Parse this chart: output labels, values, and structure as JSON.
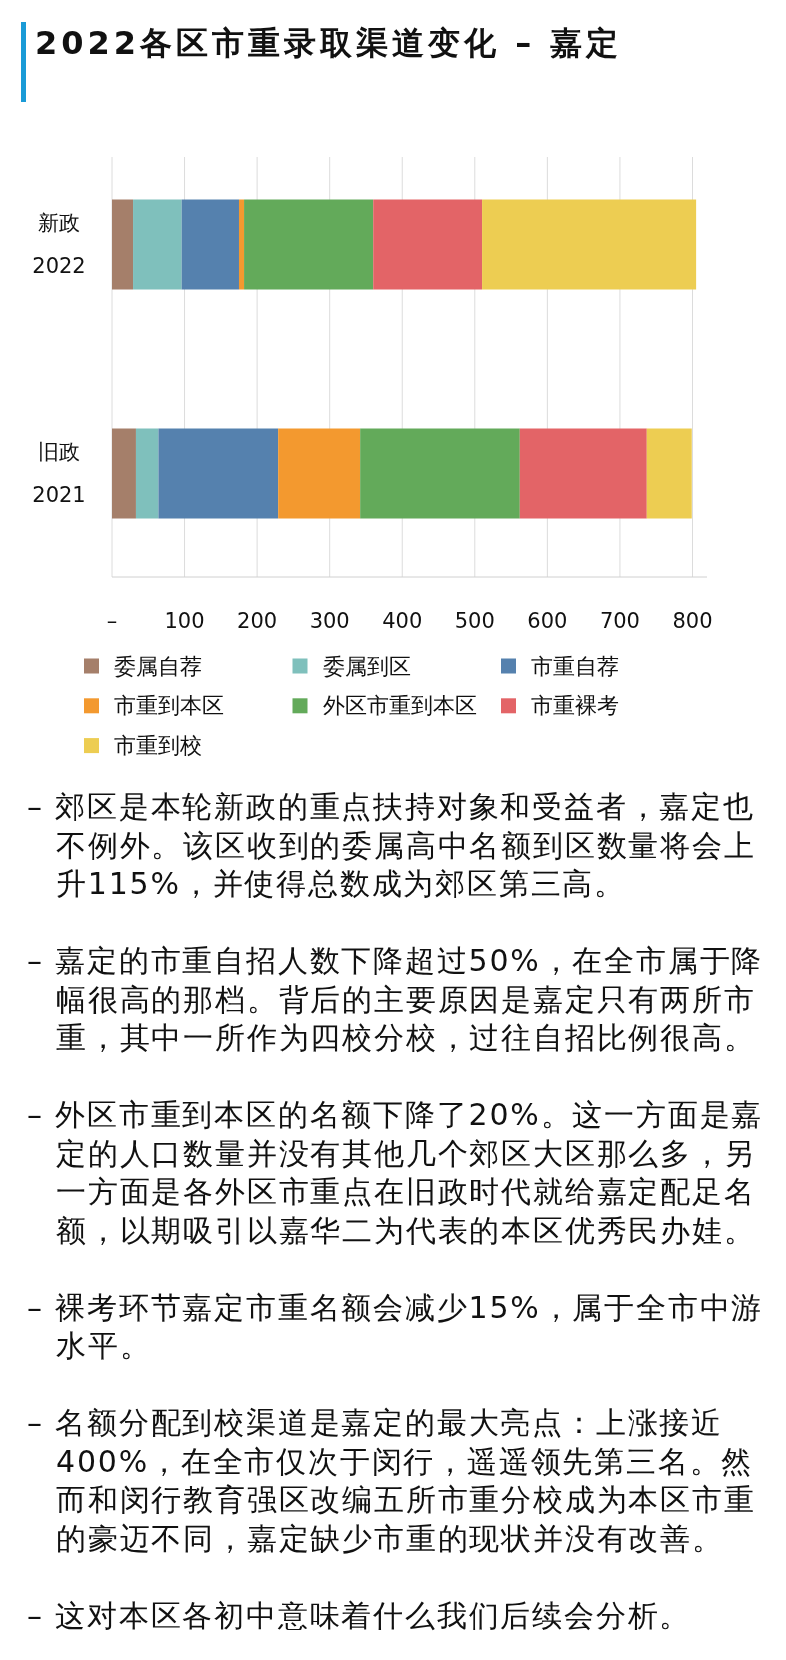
{
  "chart_data": {
    "type": "bar",
    "orientation": "horizontal",
    "stacked": true,
    "title": "2022各区市重录取渠道变化 – 嘉定",
    "categories": [
      "新政\n2022",
      "旧政\n2021"
    ],
    "series": [
      {
        "name": "委属自荐",
        "color": "#a57f6a",
        "values": [
          29,
          33
        ]
      },
      {
        "name": "委属到区",
        "color": "#7fc0bc",
        "values": [
          67,
          31
        ]
      },
      {
        "name": "市重自荐",
        "color": "#5581ae",
        "values": [
          79,
          165
        ]
      },
      {
        "name": "市重到本区",
        "color": "#f3992f",
        "values": [
          7,
          113
        ]
      },
      {
        "name": "外区市重到本区",
        "color": "#63aa5a",
        "values": [
          178,
          220
        ]
      },
      {
        "name": "市重裸考",
        "color": "#e36467",
        "values": [
          150,
          175
        ]
      },
      {
        "name": "市重到校",
        "color": "#edcd52",
        "values": [
          295,
          62
        ]
      }
    ],
    "xlim": [
      0,
      820
    ],
    "xticks": [
      {
        "value": 0,
        "label": "–"
      },
      100,
      200,
      300,
      400,
      500,
      600,
      700,
      800
    ],
    "grid": "x",
    "legend": "bottom",
    "annotations": [
      "– 郊区是本轮新政的重点扶持对象和受益者，嘉定也不例外。该区收到的委属高中名额到区数量将会上升115%，并使得总数成为郊区第三高。",
      "– 嘉定的市重自招人数下降超过50%，在全市属于降幅很高的那档。背后的主要原因是嘉定只有两所市重，其中一所作为四校分校，过往自招比例很高。",
      "– 外区市重到本区的名额下降了20%。这一方面是嘉定的人口数量并没有其他几个郊区大区那么多，另一方面是各外区市重点在旧政时代就给嘉定配足名额，以期吸引以嘉华二为代表的本区优秀民办娃。",
      "– 裸考环节嘉定市重名额会减少15%，属于全市中游水平。",
      "– 名额分配到校渠道是嘉定的最大亮点：上涨接近400%，在全市仅次于闵行，遥遥领先第三名。然而和闵行教育强区改编五所市重分校成为本区市重的豪迈不同，嘉定缺少市重的现状并没有改善。",
      "– 这对本区各初中意味着什么我们后续会分析。"
    ]
  }
}
